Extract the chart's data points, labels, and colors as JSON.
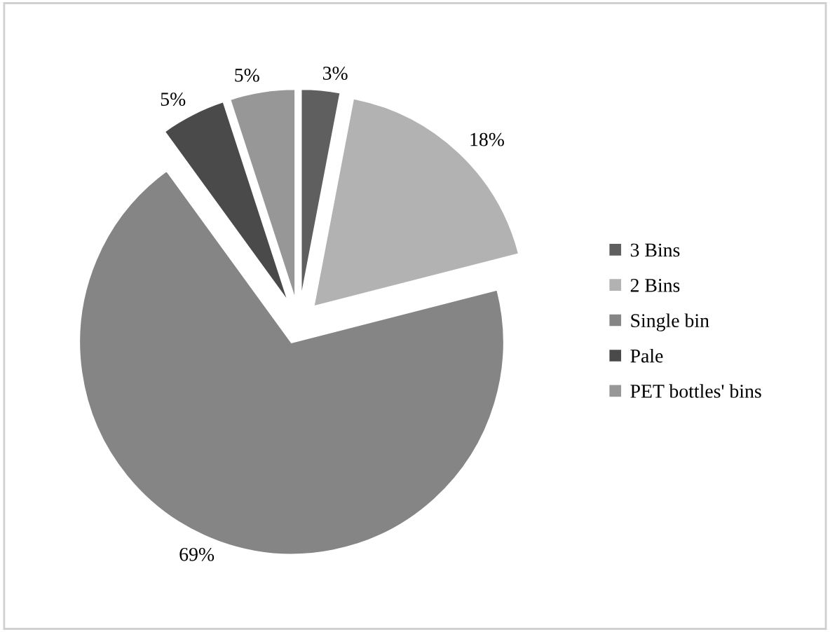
{
  "chart_data": {
    "type": "pie",
    "categories": [
      "3 Bins",
      "2 Bins",
      "Single bin",
      "Pale",
      "PET bottles' bins"
    ],
    "values": [
      3,
      18,
      69,
      5,
      5
    ],
    "colors": [
      "#5f5f5f",
      "#b2b2b2",
      "#858585",
      "#4a4a4a",
      "#979797"
    ],
    "value_labels": [
      "3%",
      "18%",
      "69%",
      "5%",
      "5%"
    ],
    "legend": "right"
  }
}
